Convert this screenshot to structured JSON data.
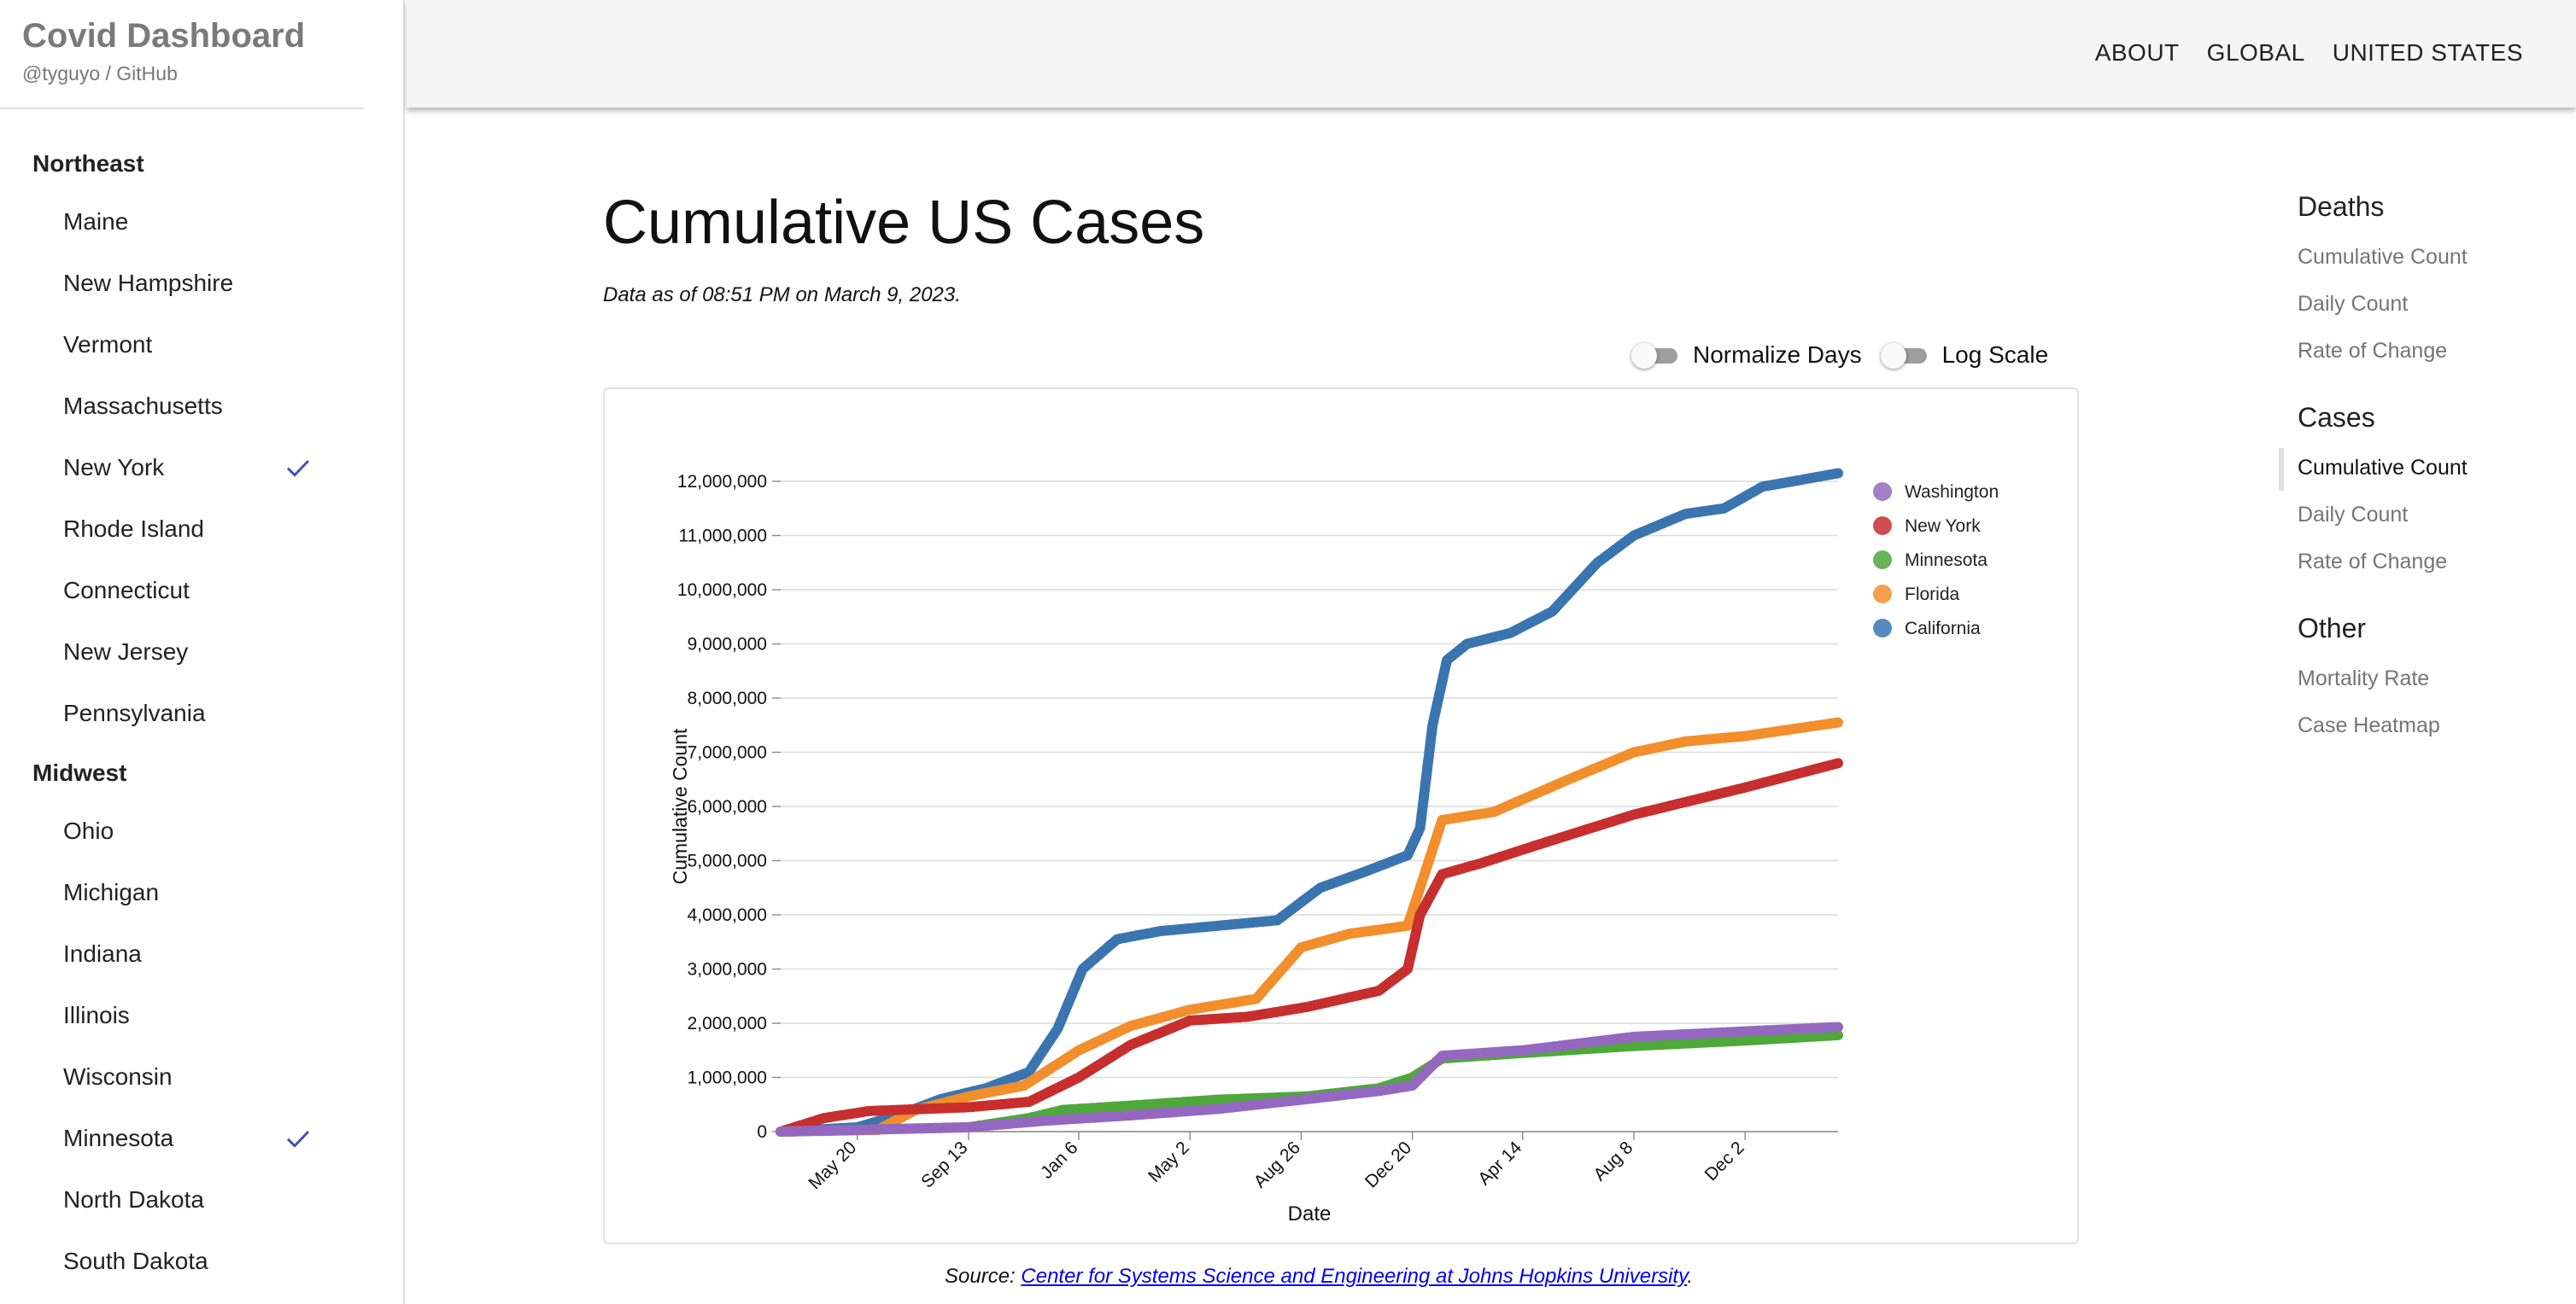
{
  "brand": {
    "title": "Covid Dashboard",
    "subtitle": "@tyguyo / GitHub"
  },
  "nav": {
    "about": "ABOUT",
    "global": "GLOBAL",
    "united_states": "UNITED STATES"
  },
  "sidebar": {
    "regions": [
      {
        "name": "Northeast",
        "states": [
          {
            "name": "Maine",
            "checked": false
          },
          {
            "name": "New Hampshire",
            "checked": false
          },
          {
            "name": "Vermont",
            "checked": false
          },
          {
            "name": "Massachusetts",
            "checked": false
          },
          {
            "name": "New York",
            "checked": true
          },
          {
            "name": "Rhode Island",
            "checked": false
          },
          {
            "name": "Connecticut",
            "checked": false
          },
          {
            "name": "New Jersey",
            "checked": false
          },
          {
            "name": "Pennsylvania",
            "checked": false
          }
        ]
      },
      {
        "name": "Midwest",
        "states": [
          {
            "name": "Ohio",
            "checked": false
          },
          {
            "name": "Michigan",
            "checked": false
          },
          {
            "name": "Indiana",
            "checked": false
          },
          {
            "name": "Illinois",
            "checked": false
          },
          {
            "name": "Wisconsin",
            "checked": false
          },
          {
            "name": "Minnesota",
            "checked": true
          },
          {
            "name": "North Dakota",
            "checked": false
          },
          {
            "name": "South Dakota",
            "checked": false
          }
        ]
      }
    ],
    "check_color": "#3f51b5"
  },
  "main": {
    "title": "Cumulative US Cases",
    "data_note": "Data as of 08:51 PM on March 9, 2023.",
    "toggles": [
      {
        "label": "Normalize Days",
        "on": false
      },
      {
        "label": "Log Scale",
        "on": false
      }
    ],
    "source_prefix": "Source: ",
    "source_link": "Center for Systems Science and Engineering at Johns Hopkins University",
    "source_suffix": "."
  },
  "toc": {
    "sections": [
      {
        "title": "Deaths",
        "items": [
          {
            "label": "Cumulative Count",
            "active": false
          },
          {
            "label": "Daily Count",
            "active": false
          },
          {
            "label": "Rate of Change",
            "active": false
          }
        ]
      },
      {
        "title": "Cases",
        "items": [
          {
            "label": "Cumulative Count",
            "active": true
          },
          {
            "label": "Daily Count",
            "active": false
          },
          {
            "label": "Rate of Change",
            "active": false
          }
        ]
      },
      {
        "title": "Other",
        "items": [
          {
            "label": "Mortality Rate",
            "active": false
          },
          {
            "label": "Case Heatmap",
            "active": false
          }
        ]
      }
    ]
  },
  "chart_data": {
    "type": "scatter",
    "xlabel": "Date",
    "ylabel": "Cumulative Count",
    "ylim": [
      0,
      12000000
    ],
    "yticks": [
      0,
      1000000,
      2000000,
      3000000,
      4000000,
      5000000,
      6000000,
      7000000,
      8000000,
      9000000,
      10000000,
      11000000,
      12000000
    ],
    "xlim": [
      "2020-03-01",
      "2023-03-09"
    ],
    "xticks": [
      {
        "date": "2020-05-20",
        "label": "May 20"
      },
      {
        "date": "2020-09-13",
        "label": "Sep 13"
      },
      {
        "date": "2021-01-06",
        "label": "Jan 6"
      },
      {
        "date": "2021-05-02",
        "label": "May 2"
      },
      {
        "date": "2021-08-26",
        "label": "Aug 26"
      },
      {
        "date": "2021-12-20",
        "label": "Dec 20"
      },
      {
        "date": "2022-04-14",
        "label": "Apr 14"
      },
      {
        "date": "2022-08-08",
        "label": "Aug 8"
      },
      {
        "date": "2022-12-02",
        "label": "Dec 2"
      }
    ],
    "grid": true,
    "legend": "top-right",
    "series": [
      {
        "name": "California",
        "color": "#3a75b0",
        "points": [
          [
            "2020-03-01",
            0
          ],
          [
            "2020-05-20",
            80000
          ],
          [
            "2020-07-01",
            300000
          ],
          [
            "2020-08-15",
            600000
          ],
          [
            "2020-10-01",
            800000
          ],
          [
            "2020-11-15",
            1100000
          ],
          [
            "2020-12-15",
            1900000
          ],
          [
            "2021-01-10",
            3000000
          ],
          [
            "2021-02-15",
            3550000
          ],
          [
            "2021-04-01",
            3700000
          ],
          [
            "2021-06-01",
            3800000
          ],
          [
            "2021-08-01",
            3900000
          ],
          [
            "2021-09-15",
            4500000
          ],
          [
            "2021-11-01",
            4800000
          ],
          [
            "2021-12-15",
            5100000
          ],
          [
            "2021-12-28",
            5600000
          ],
          [
            "2022-01-10",
            7500000
          ],
          [
            "2022-01-25",
            8700000
          ],
          [
            "2022-02-15",
            9000000
          ],
          [
            "2022-04-01",
            9200000
          ],
          [
            "2022-05-15",
            9600000
          ],
          [
            "2022-07-01",
            10500000
          ],
          [
            "2022-08-08",
            11000000
          ],
          [
            "2022-10-01",
            11400000
          ],
          [
            "2022-11-10",
            11500000
          ],
          [
            "2022-12-20",
            11900000
          ],
          [
            "2023-03-09",
            12150000
          ]
        ]
      },
      {
        "name": "Florida",
        "color": "#f28e2c",
        "points": [
          [
            "2020-03-01",
            0
          ],
          [
            "2020-06-10",
            30000
          ],
          [
            "2020-07-20",
            400000
          ],
          [
            "2020-09-13",
            650000
          ],
          [
            "2020-11-10",
            850000
          ],
          [
            "2021-01-06",
            1500000
          ],
          [
            "2021-03-01",
            1950000
          ],
          [
            "2021-05-02",
            2250000
          ],
          [
            "2021-07-10",
            2450000
          ],
          [
            "2021-08-26",
            3400000
          ],
          [
            "2021-10-15",
            3650000
          ],
          [
            "2021-12-15",
            3800000
          ],
          [
            "2021-12-28",
            4500000
          ],
          [
            "2022-01-20",
            5750000
          ],
          [
            "2022-03-15",
            5900000
          ],
          [
            "2022-06-01",
            6500000
          ],
          [
            "2022-08-08",
            7000000
          ],
          [
            "2022-10-01",
            7200000
          ],
          [
            "2022-12-02",
            7300000
          ],
          [
            "2023-03-09",
            7550000
          ]
        ]
      },
      {
        "name": "New York",
        "color": "#c72e2e",
        "points": [
          [
            "2020-03-01",
            0
          ],
          [
            "2020-04-15",
            250000
          ],
          [
            "2020-06-01",
            380000
          ],
          [
            "2020-09-13",
            450000
          ],
          [
            "2020-11-15",
            550000
          ],
          [
            "2021-01-06",
            1000000
          ],
          [
            "2021-03-01",
            1600000
          ],
          [
            "2021-05-02",
            2050000
          ],
          [
            "2021-07-01",
            2120000
          ],
          [
            "2021-09-01",
            2300000
          ],
          [
            "2021-11-15",
            2600000
          ],
          [
            "2021-12-15",
            3000000
          ],
          [
            "2021-12-28",
            4000000
          ],
          [
            "2022-01-20",
            4750000
          ],
          [
            "2022-03-01",
            4950000
          ],
          [
            "2022-05-01",
            5300000
          ],
          [
            "2022-08-08",
            5850000
          ],
          [
            "2022-12-02",
            6350000
          ],
          [
            "2023-03-09",
            6800000
          ]
        ]
      },
      {
        "name": "Minnesota",
        "color": "#4ea83a",
        "points": [
          [
            "2020-03-01",
            0
          ],
          [
            "2020-09-13",
            80000
          ],
          [
            "2020-11-15",
            250000
          ],
          [
            "2020-12-20",
            400000
          ],
          [
            "2021-03-01",
            480000
          ],
          [
            "2021-06-01",
            590000
          ],
          [
            "2021-09-01",
            650000
          ],
          [
            "2021-11-15",
            800000
          ],
          [
            "2021-12-20",
            1000000
          ],
          [
            "2022-01-20",
            1350000
          ],
          [
            "2022-04-14",
            1450000
          ],
          [
            "2022-08-08",
            1580000
          ],
          [
            "2022-12-02",
            1680000
          ],
          [
            "2023-03-09",
            1780000
          ]
        ]
      },
      {
        "name": "Washington",
        "color": "#9468c0",
        "points": [
          [
            "2020-03-01",
            0
          ],
          [
            "2020-09-13",
            80000
          ],
          [
            "2020-12-01",
            200000
          ],
          [
            "2021-03-01",
            300000
          ],
          [
            "2021-06-01",
            420000
          ],
          [
            "2021-09-01",
            600000
          ],
          [
            "2021-11-15",
            750000
          ],
          [
            "2021-12-20",
            850000
          ],
          [
            "2022-01-20",
            1400000
          ],
          [
            "2022-04-14",
            1500000
          ],
          [
            "2022-08-08",
            1750000
          ],
          [
            "2022-12-02",
            1850000
          ],
          [
            "2023-03-09",
            1930000
          ]
        ]
      }
    ],
    "legend_order": [
      "Washington",
      "New York",
      "Minnesota",
      "Florida",
      "California"
    ]
  }
}
